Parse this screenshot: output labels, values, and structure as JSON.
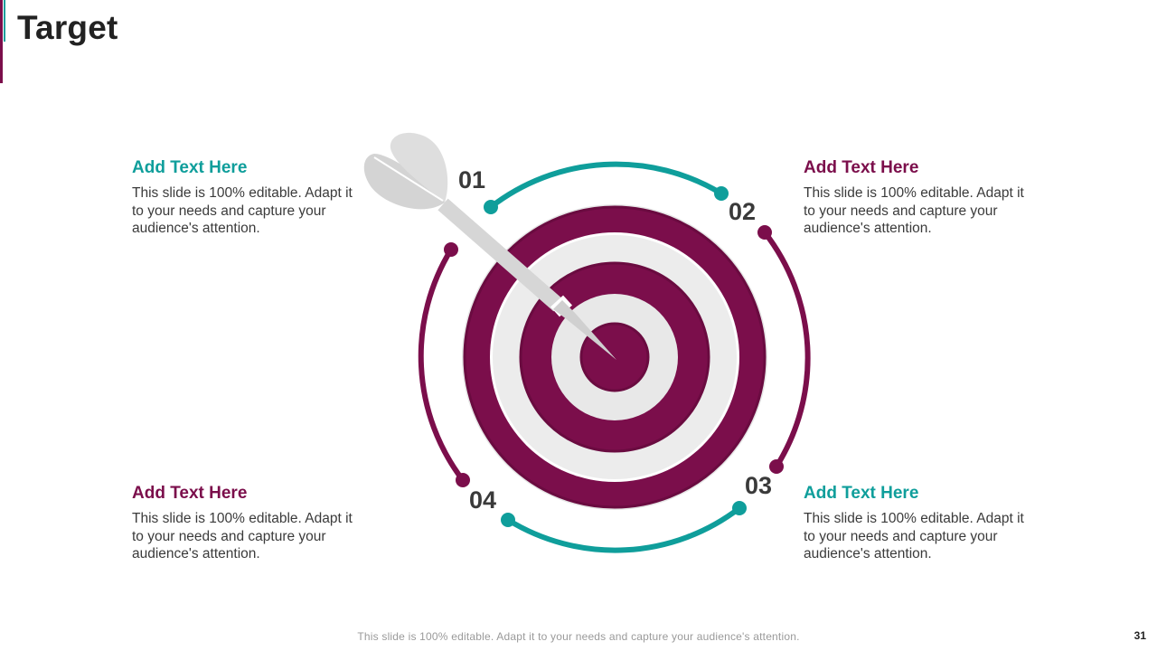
{
  "slide": {
    "title": "Target",
    "footer": "This slide is 100% editable. Adapt it to your needs and capture your audience's attention.",
    "page_number": "31"
  },
  "colors": {
    "teal": "#0f9e9b",
    "purple": "#7b0e4b",
    "ring_light": "#e8e8e8",
    "dart_gray": "#d9d9d9",
    "text_dark": "#3b3b3b"
  },
  "items": [
    {
      "number": "01",
      "heading": "Add Text Here",
      "heading_color": "#0f9e9b",
      "body": "This slide is 100% editable. Adapt it to your needs and capture your audience's attention."
    },
    {
      "number": "02",
      "heading": "Add Text Here",
      "heading_color": "#7b0e4b",
      "body": "This slide is 100% editable. Adapt it to your needs and capture your audience's attention."
    },
    {
      "number": "03",
      "heading": "Add Text Here",
      "heading_color": "#0f9e9b",
      "body": "This slide is 100% editable. Adapt it to your needs and capture your audience's attention."
    },
    {
      "number": "04",
      "heading": "Add Text Here",
      "heading_color": "#7b0e4b",
      "body": "This slide is 100% editable. Adapt it to your needs and capture your audience's attention."
    }
  ],
  "graphic": {
    "icon": "dartboard-with-dart-icon"
  }
}
